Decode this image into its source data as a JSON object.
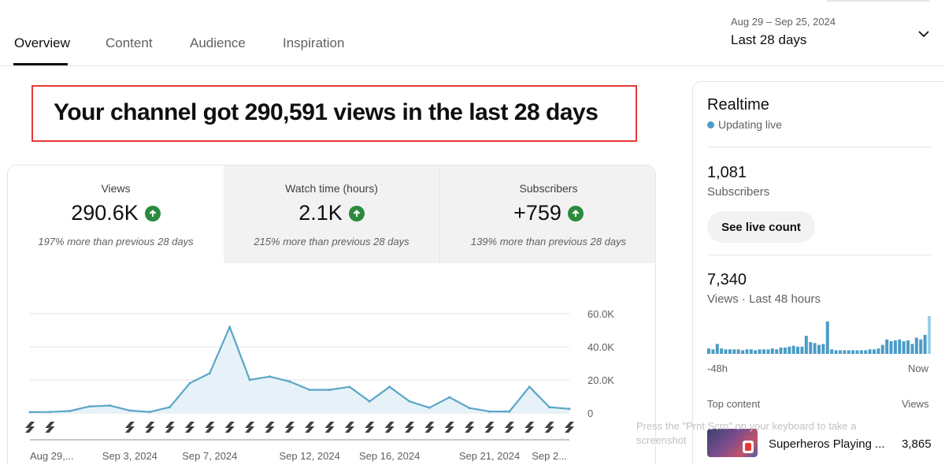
{
  "tabs": [
    {
      "label": "Overview",
      "active": true
    },
    {
      "label": "Content",
      "active": false
    },
    {
      "label": "Audience",
      "active": false
    },
    {
      "label": "Inspiration",
      "active": false
    }
  ],
  "date_range": {
    "range": "Aug 29 – Sep 25, 2024",
    "label": "Last 28 days"
  },
  "headline": "Your channel got 290,591 views in the last 28 days",
  "metrics": [
    {
      "label": "Views",
      "value": "290.6K",
      "note": "197% more than previous 28 days",
      "trend": "up"
    },
    {
      "label": "Watch time (hours)",
      "value": "2.1K",
      "note": "215% more than previous 28 days",
      "trend": "up"
    },
    {
      "label": "Subscribers",
      "value": "+759",
      "note": "139% more than previous 28 days",
      "trend": "up"
    }
  ],
  "chart_data": {
    "type": "area",
    "series": [
      {
        "values": [
          500,
          600,
          1200,
          4000,
          4500,
          1500,
          600,
          3500,
          18000,
          24000,
          52000,
          20000,
          22000,
          19000,
          14000,
          14000,
          15800,
          7000,
          15800,
          7000,
          3200,
          9500,
          3000,
          900,
          900,
          15800,
          3500,
          2500
        ]
      }
    ],
    "x_tick_labels": [
      "Aug 29,...",
      "Sep 3, 2024",
      "Sep 7, 2024",
      "Sep 12, 2024",
      "Sep 16, 2024",
      "Sep 21, 2024",
      "Sep 2..."
    ],
    "y_tick_labels": [
      "60.0K",
      "40.0K",
      "20.0K",
      "0"
    ],
    "ylim": [
      0,
      60000
    ],
    "marker_days": [
      1,
      2,
      6,
      7,
      8,
      9,
      10,
      11,
      12,
      13,
      14,
      15,
      16,
      17,
      18,
      19,
      20,
      21,
      22,
      23,
      24,
      25,
      26,
      27,
      28
    ],
    "colors": {
      "line": "#5aa6c8",
      "fill": "#e6f2f8",
      "grid": "#e0e0e0",
      "marker": "#3f3f3f"
    }
  },
  "realtime": {
    "title": "Realtime",
    "status": "Updating live",
    "subscribers_value": "1,081",
    "subscribers_label": "Subscribers",
    "live_button": "See live count",
    "views_value": "7,340",
    "views_label": "Views · Last 48 hours",
    "axis_start": "-48h",
    "axis_end": "Now",
    "bars": [
      6,
      5,
      11,
      6,
      5,
      5,
      5,
      5,
      4,
      5,
      5,
      4,
      5,
      5,
      5,
      6,
      5,
      7,
      7,
      8,
      9,
      8,
      8,
      20,
      13,
      12,
      10,
      11,
      36,
      5,
      4,
      4,
      4,
      4,
      4,
      4,
      4,
      4,
      5,
      5,
      6,
      10,
      16,
      14,
      15,
      16,
      14,
      15,
      11,
      18,
      16,
      21,
      42
    ],
    "top_content_label": "Top content",
    "views_column_label": "Views",
    "top_item_title": "Superheros Playing ...",
    "top_item_views": "3,865"
  },
  "hint": "Press the \"Prnt Scrn\" on your keyboard to take a screenshot"
}
